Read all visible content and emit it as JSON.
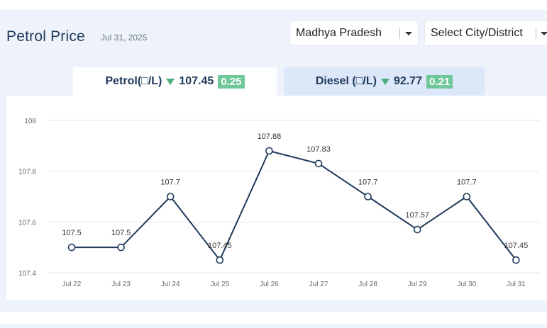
{
  "header": {
    "title": "Petrol Price",
    "date": "Jul 31, 2025"
  },
  "filters": {
    "state": "Madhya Pradesh",
    "city": "Select City/District"
  },
  "tabs": [
    {
      "label": "Petrol(□/L)",
      "price": "107.45",
      "change": "0.25",
      "direction": "down"
    },
    {
      "label": "Diesel (□/L)",
      "price": "92.77",
      "change": "0.21",
      "direction": "down"
    }
  ],
  "colors": {
    "line": "#1f3a5a",
    "down_arrow": "#4caf7d",
    "badge": "#6fc79a"
  },
  "chart_data": {
    "type": "line",
    "categories": [
      "Jul 22",
      "Jul 23",
      "Jul 24",
      "Jul 25",
      "Jul 26",
      "Jul 27",
      "Jul 28",
      "Jul 29",
      "Jul 30",
      "Jul 31"
    ],
    "series": [
      {
        "values": [
          107.5,
          107.5,
          107.7,
          107.45,
          107.88,
          107.83,
          107.7,
          107.57,
          107.7,
          107.45
        ]
      }
    ],
    "data_labels": [
      "107.5",
      "107.5",
      "107.7",
      "107.45",
      "107.88",
      "107.83",
      "107.7",
      "107.57",
      "107.7",
      "107.45"
    ],
    "y_ticks": [
      "107.4",
      "107.6",
      "107.8",
      "108"
    ],
    "y_tick_values": [
      107.4,
      107.6,
      107.8,
      108
    ],
    "ylim": [
      107.4,
      108
    ],
    "grid": true
  }
}
